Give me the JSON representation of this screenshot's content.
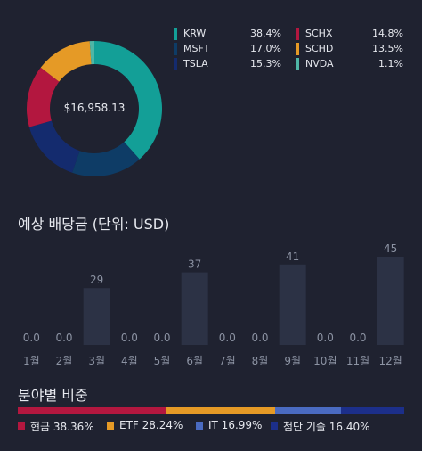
{
  "portfolio": {
    "total": "$16,958.13",
    "holdings": [
      {
        "name": "KRW",
        "percent": "38.4%",
        "value": 38.4,
        "color": "#139f97"
      },
      {
        "name": "MSFT",
        "percent": "17.0%",
        "value": 17.0,
        "color": "#0e3c66"
      },
      {
        "name": "TSLA",
        "percent": "15.3%",
        "value": 15.3,
        "color": "#142b6e"
      },
      {
        "name": "SCHX",
        "percent": "14.8%",
        "value": 14.8,
        "color": "#b3173f"
      },
      {
        "name": "SCHD",
        "percent": "13.5%",
        "value": 13.5,
        "color": "#e59a26"
      },
      {
        "name": "NVDA",
        "percent": "1.1%",
        "value": 1.1,
        "color": "#4fb6a6"
      }
    ]
  },
  "dividend": {
    "title": "예상 배당금 (단위: USD)"
  },
  "chart_data": {
    "type": "bar",
    "title": "예상 배당금 (단위: USD)",
    "categories": [
      "1월",
      "2월",
      "3월",
      "4월",
      "5월",
      "6월",
      "7월",
      "8월",
      "9월",
      "10월",
      "11월",
      "12월"
    ],
    "values": [
      0,
      0,
      29,
      0,
      0,
      37,
      0,
      0,
      41,
      0,
      0,
      45
    ],
    "value_labels": [
      "0.0",
      "0.0",
      "29",
      "0.0",
      "0.0",
      "37",
      "0.0",
      "0.0",
      "41",
      "0.0",
      "0.0",
      "45"
    ],
    "ylim": [
      0,
      50
    ],
    "grid": false,
    "bar_color": "#2c3245"
  },
  "sector": {
    "title": "분야별 비중",
    "items": [
      {
        "label": "현금 38.36%",
        "value": 38.36,
        "color": "#b3173f"
      },
      {
        "label": "ETF 28.24%",
        "value": 28.24,
        "color": "#e59a26"
      },
      {
        "label": "IT 16.99%",
        "value": 16.99,
        "color": "#4a6bc1"
      },
      {
        "label": "첨단 기술 16.40%",
        "value": 16.4,
        "color": "#1c2f8a"
      }
    ]
  }
}
